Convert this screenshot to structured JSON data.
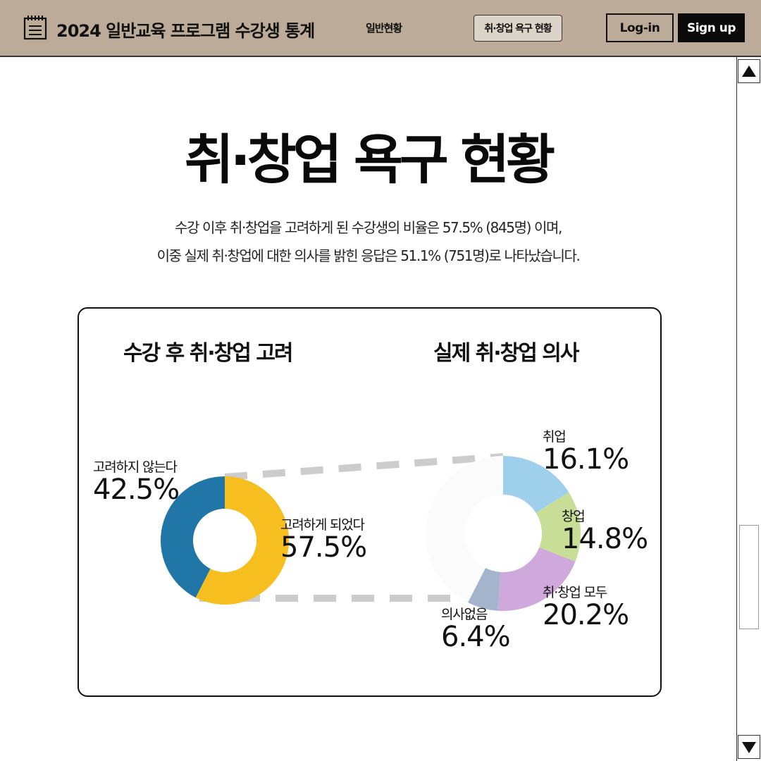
{
  "header": {
    "title": "2024 일반교육 프로그램 수강생 통계",
    "nav": [
      "일반현황",
      "취·창업 욕구 현황"
    ],
    "login_label": "Log-in",
    "signup_label": "Sign up"
  },
  "main": {
    "title": "취·창업 욕구 현황",
    "description_line1": "수강 이후 취·창업을 고려하게 된 수강생의 비율은 57.5% (845명) 이며,",
    "description_line2": "이중 실제 취·창업에 대한 의사를 밝힌 응답은 51.1% (751명)로 나타났습니다."
  },
  "colors": {
    "header_bg": "#bcab98",
    "blue": "#2176a8",
    "yellow": "#f6be1e",
    "light_blue": "#9ed0ec",
    "light_green": "#c8de96",
    "lavender": "#cfa9dc",
    "slate": "#a4b4cc",
    "none_fill": "#fbfbfb",
    "connector": "#cccccc"
  },
  "chart_data": [
    {
      "type": "pie",
      "title": "수강 후 취·창업 고려",
      "categories": [
        "고려하게 되었다",
        "고려하지 않는다"
      ],
      "values": [
        57.5,
        42.5
      ],
      "labels": [
        "57.5%",
        "42.5%"
      ],
      "colors": [
        "#f6be1e",
        "#2176a8"
      ]
    },
    {
      "type": "pie",
      "title": "실제 취·창업 의사",
      "categories": [
        "취업",
        "창업",
        "취·창업 모두",
        "의사없음"
      ],
      "values": [
        16.1,
        14.8,
        20.2,
        6.4
      ],
      "labels": [
        "16.1%",
        "14.8%",
        "20.2%",
        "6.4%"
      ],
      "colors": [
        "#9ed0ec",
        "#c8de96",
        "#cfa9dc",
        "#a4b4cc"
      ],
      "remainder_color": "#fbfbfb"
    }
  ]
}
